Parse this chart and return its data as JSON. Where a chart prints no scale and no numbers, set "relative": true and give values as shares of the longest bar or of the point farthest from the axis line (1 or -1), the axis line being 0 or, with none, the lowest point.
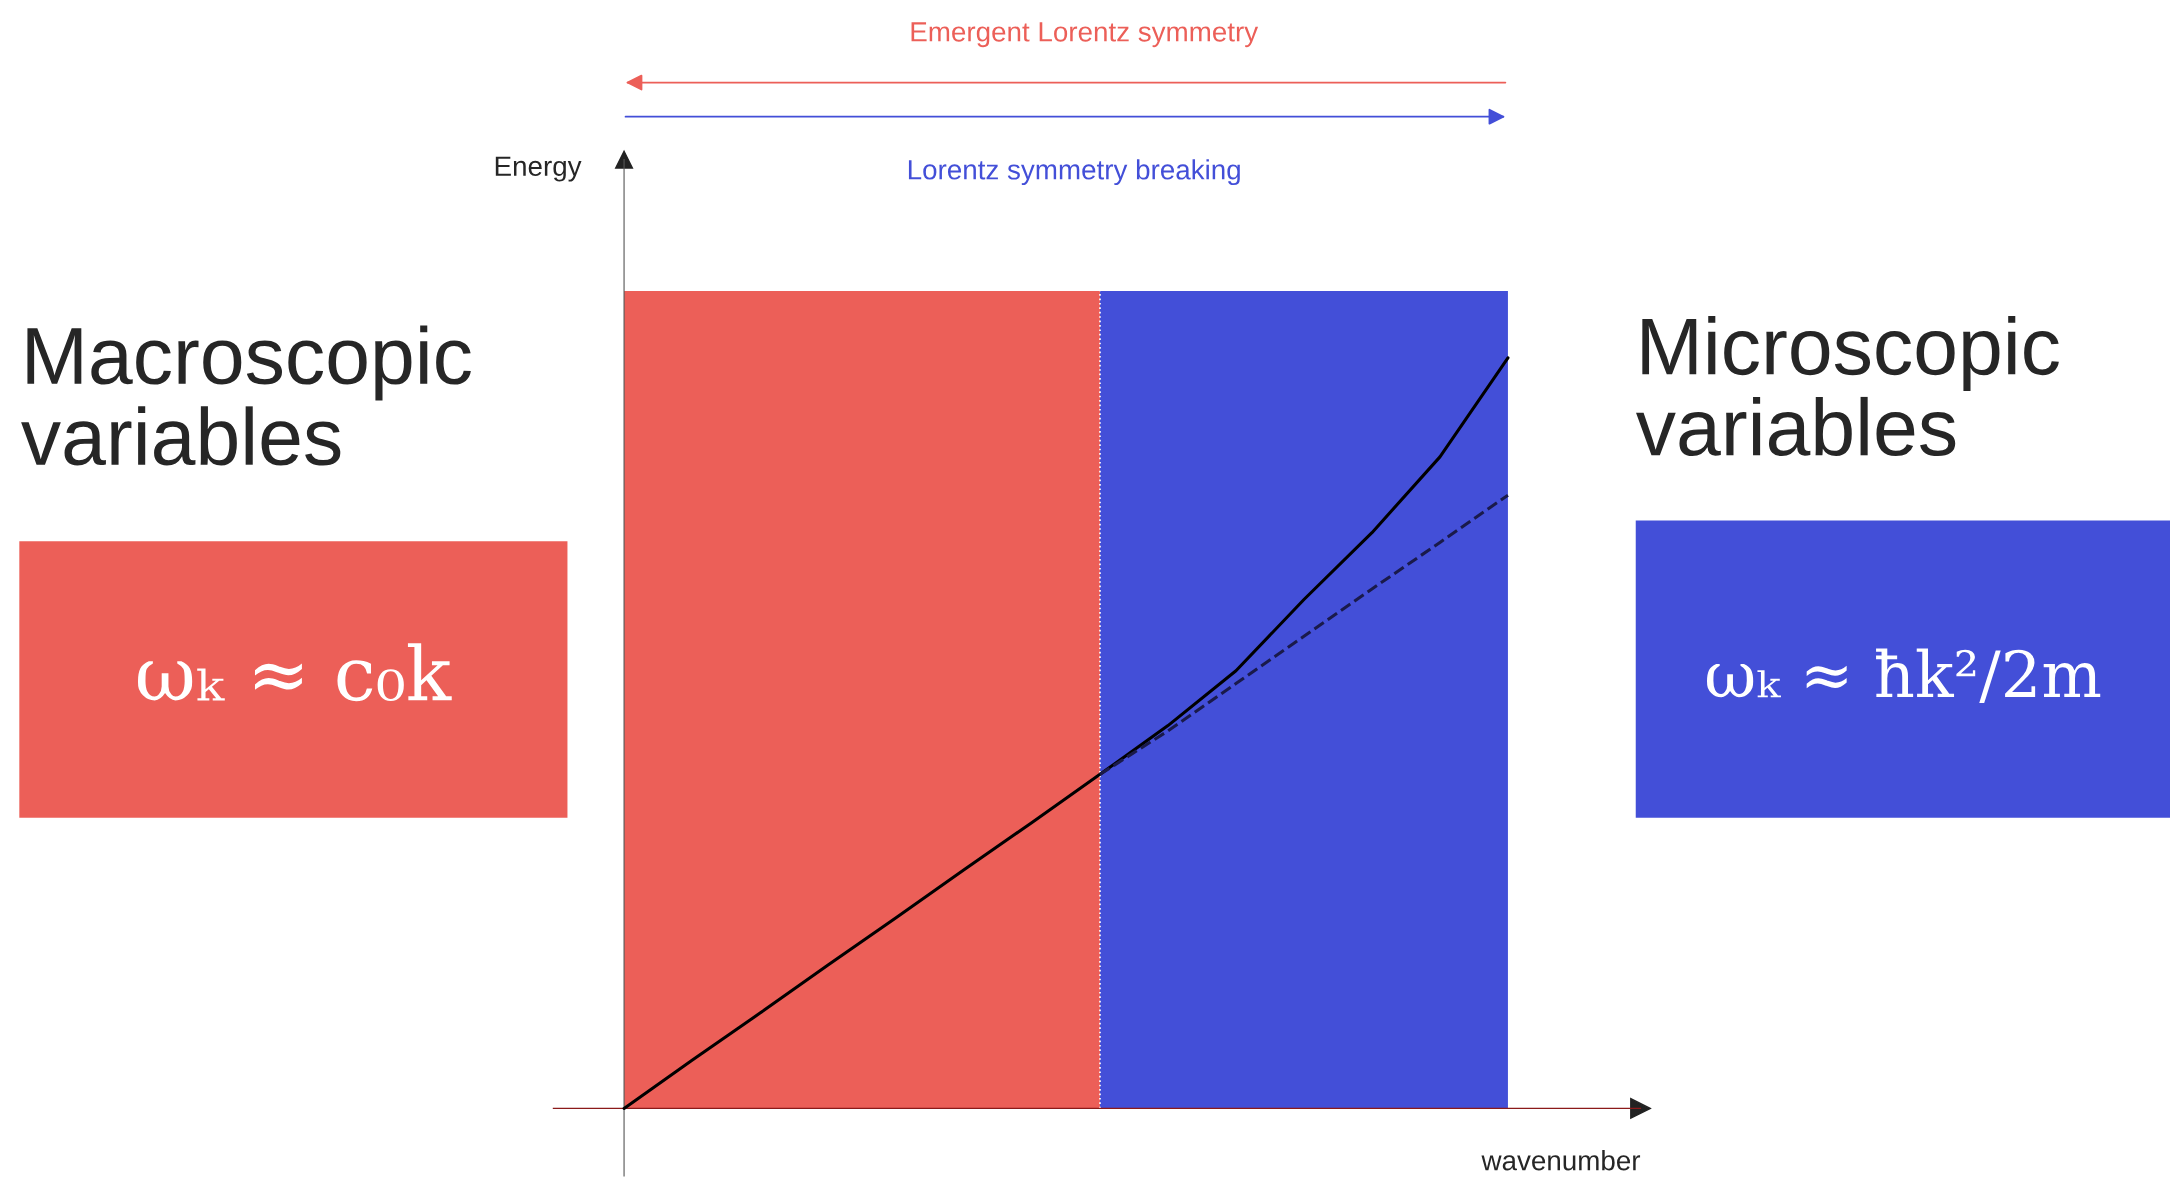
{
  "chart_data": {
    "type": "line",
    "relative": true,
    "xlabel": "wavenumber",
    "legend": false,
    "categories": [
      null,
      null,
      null,
      null,
      null,
      null,
      null,
      null,
      null,
      null,
      null,
      null,
      null,
      null
    ],
    "series": [
      {
        "color": "#000000",
        "line_style": "solid",
        "values": [
          0,
          0.064,
          0.127,
          0.191,
          0.254,
          0.318,
          0.381,
          0.445,
          0.51,
          0.583,
          0.678,
          0.767,
          0.868,
          1.0
        ]
      },
      {
        "color": "#1a1a4a",
        "line_style": "dashed",
        "values": [
          null,
          null,
          null,
          null,
          null,
          null,
          null,
          0.445,
          0.503,
          0.566,
          0.629,
          0.692,
          0.754,
          0.817
        ]
      }
    ],
    "annotations": [
      "Energy",
      "Emergent Lorentz symmetry",
      "Lorentz symmetry breaking",
      "Macroscopic\nvariables",
      "ωₖ ≈ c₀k",
      "Microscopic\nvariables",
      "ωₖ ≈ ħk²/2m"
    ]
  }
}
